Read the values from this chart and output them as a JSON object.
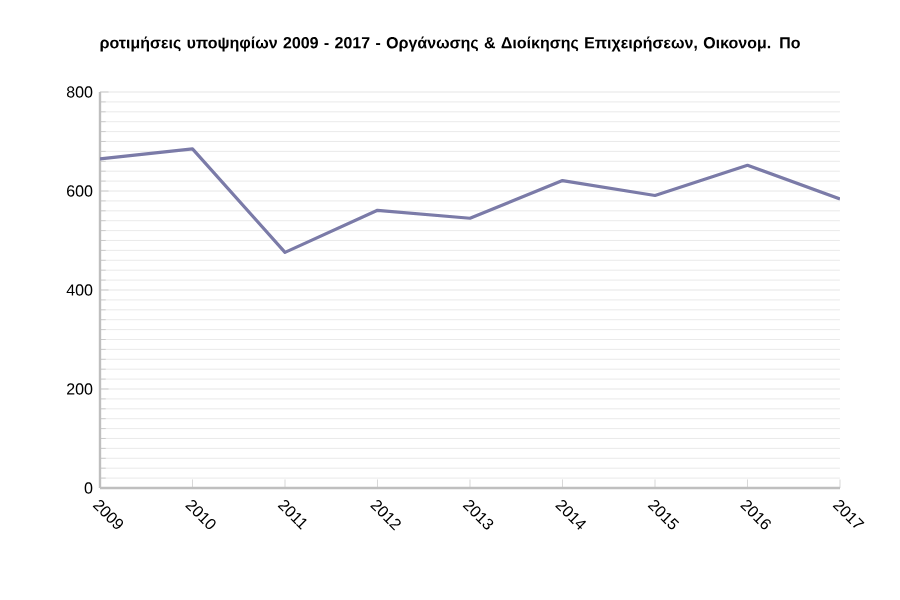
{
  "chart_data": {
    "type": "line",
    "title": "ροτιμήσεις υποψηφίων 2009 - 2017 - Οργάνωσης & Διοίκησης Επιχειρήσεων, Οικονομ. Πο",
    "categories": [
      "2009",
      "2010",
      "2011",
      "2012",
      "2013",
      "2014",
      "2015",
      "2016",
      "2017"
    ],
    "series": [
      {
        "color": "#7b7ba8",
        "values": [
          665,
          685,
          476,
          561,
          545,
          621,
          591,
          652,
          584
        ]
      }
    ],
    "ylim": [
      0,
      800
    ],
    "yticks": [
      0,
      200,
      400,
      600,
      800
    ],
    "grid": "y",
    "marker": "none",
    "line_style": "solid"
  }
}
